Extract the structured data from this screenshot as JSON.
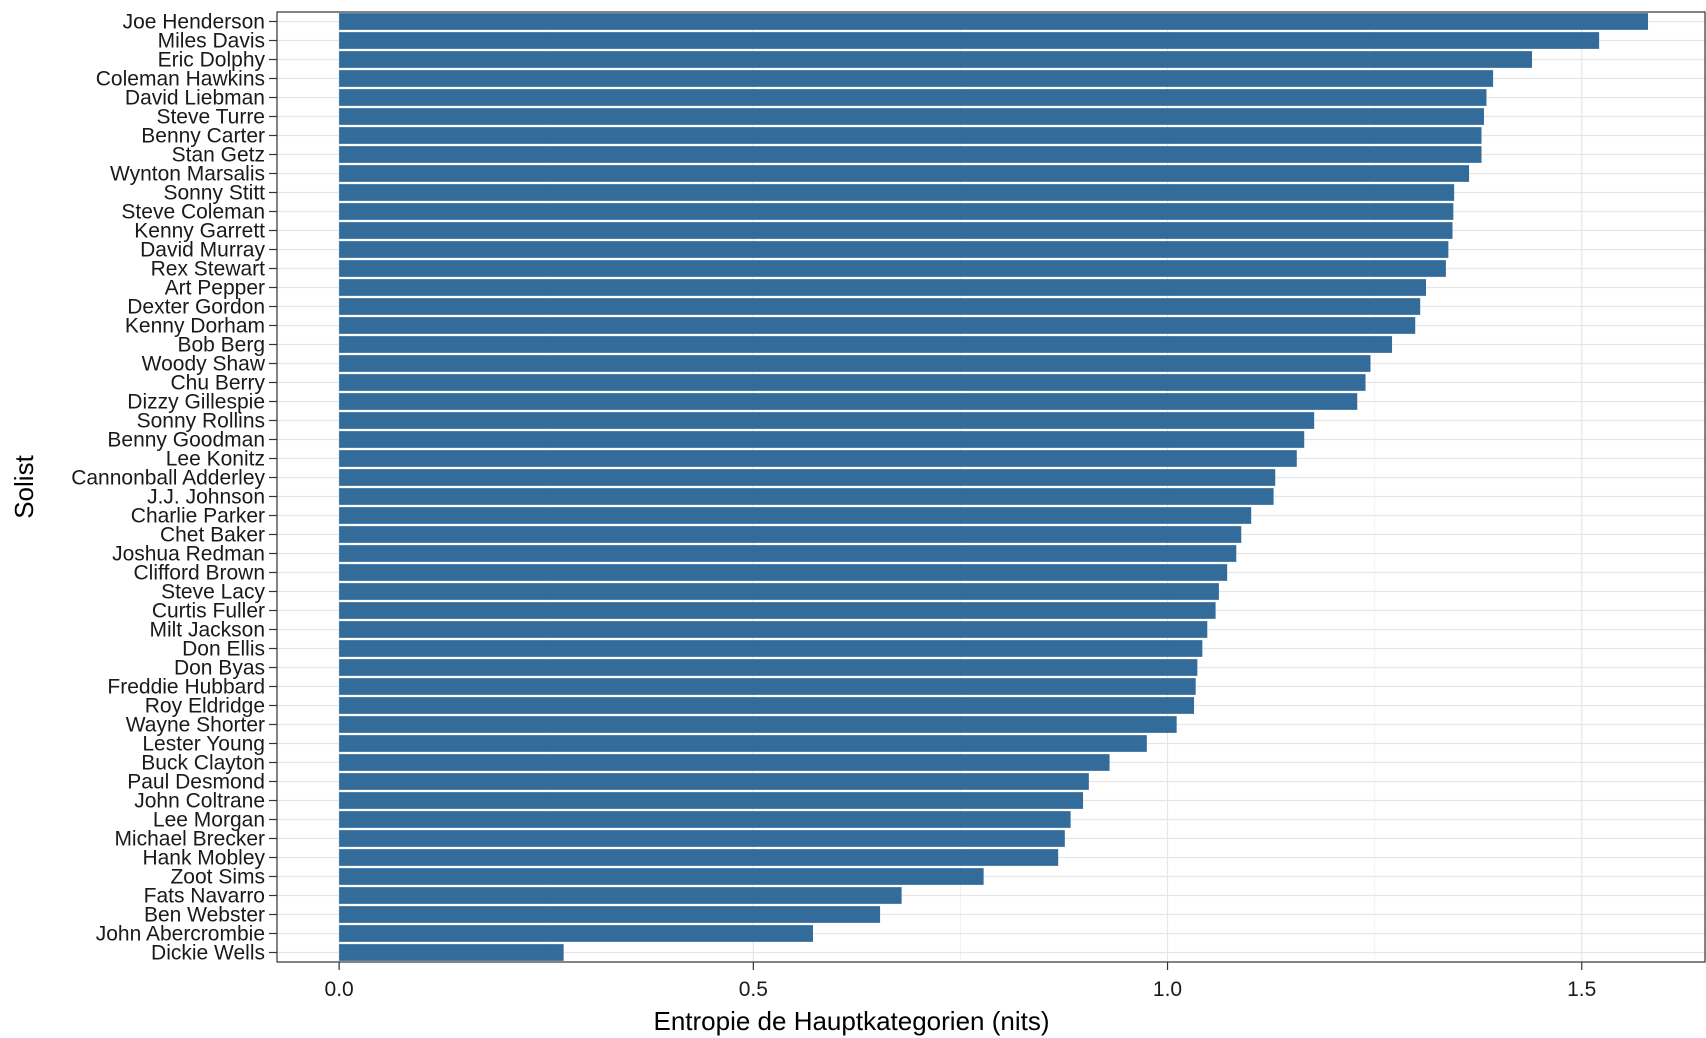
{
  "chart_data": {
    "type": "bar",
    "orientation": "horizontal",
    "xlabel": "Entropie de Hauptkategorien (nits)",
    "ylabel": "Solist",
    "xlim": [
      -0.075,
      1.65
    ],
    "xticks": [
      0.0,
      0.5,
      1.0,
      1.5
    ],
    "xtick_labels": [
      "0.0",
      "0.5",
      "1.0",
      "1.5"
    ],
    "grid": true,
    "bar_color": "#336b9b",
    "categories": [
      "Joe Henderson",
      "Miles Davis",
      "Eric Dolphy",
      "Coleman Hawkins",
      "David Liebman",
      "Steve Turre",
      "Benny Carter",
      "Stan Getz",
      "Wynton Marsalis",
      "Sonny Stitt",
      "Steve Coleman",
      "Kenny Garrett",
      "David Murray",
      "Rex Stewart",
      "Art Pepper",
      "Dexter Gordon",
      "Kenny Dorham",
      "Bob Berg",
      "Woody Shaw",
      "Chu Berry",
      "Dizzy Gillespie",
      "Sonny Rollins",
      "Benny Goodman",
      "Lee Konitz",
      "Cannonball Adderley",
      "J.J. Johnson",
      "Charlie Parker",
      "Chet Baker",
      "Joshua Redman",
      "Clifford Brown",
      "Steve Lacy",
      "Curtis Fuller",
      "Milt Jackson",
      "Don Ellis",
      "Don Byas",
      "Freddie Hubbard",
      "Roy Eldridge",
      "Wayne Shorter",
      "Lester Young",
      "Buck Clayton",
      "Paul Desmond",
      "John Coltrane",
      "Lee Morgan",
      "Michael Brecker",
      "Hank Mobley",
      "Zoot Sims",
      "Fats Navarro",
      "Ben Webster",
      "John Abercrombie",
      "Dickie Wells"
    ],
    "values": [
      1.58,
      1.521,
      1.44,
      1.393,
      1.385,
      1.382,
      1.379,
      1.379,
      1.364,
      1.346,
      1.345,
      1.344,
      1.339,
      1.336,
      1.312,
      1.305,
      1.299,
      1.271,
      1.245,
      1.239,
      1.229,
      1.177,
      1.165,
      1.156,
      1.13,
      1.128,
      1.101,
      1.089,
      1.083,
      1.072,
      1.062,
      1.058,
      1.048,
      1.042,
      1.036,
      1.034,
      1.032,
      1.011,
      0.975,
      0.93,
      0.905,
      0.898,
      0.883,
      0.876,
      0.868,
      0.778,
      0.679,
      0.653,
      0.572,
      0.271
    ]
  }
}
